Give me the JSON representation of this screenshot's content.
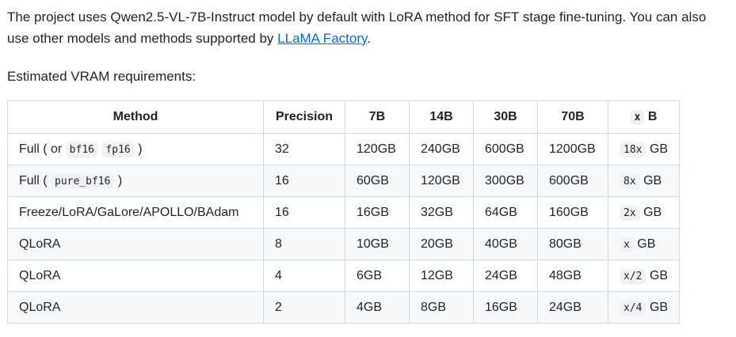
{
  "intro": {
    "text": "The project uses Qwen2.5-VL-7B-Instruct model by default with LoRA method for SFT stage fine-tuning. You can also use other models and methods supported by ",
    "link_text": "LLaMA Factory",
    "suffix": "."
  },
  "vram_label": "Estimated VRAM requirements:",
  "table": {
    "headers": {
      "method": "Method",
      "precision": "Precision",
      "h7b": "7B",
      "h14b": "14B",
      "h30b": "30B",
      "h70b": "70B",
      "hxb_code": "x",
      "hxb_suffix": "B"
    },
    "rows": [
      {
        "method_prefix": "Full ( or ",
        "method_code1": "bf16",
        "method_code2": "fp16",
        "method_suffix": " )",
        "precision": "32",
        "v7b": "120GB",
        "v14b": "240GB",
        "v30b": "600GB",
        "v70b": "1200GB",
        "xb_code": "18x",
        "xb_suffix": "GB"
      },
      {
        "method_prefix": "Full ( ",
        "method_code1": "pure_bf16",
        "method_suffix": " )",
        "precision": "16",
        "v7b": "60GB",
        "v14b": "120GB",
        "v30b": "300GB",
        "v70b": "600GB",
        "xb_code": "8x",
        "xb_suffix": "GB"
      },
      {
        "method": "Freeze/LoRA/GaLore/APOLLO/BAdam",
        "precision": "16",
        "v7b": "16GB",
        "v14b": "32GB",
        "v30b": "64GB",
        "v70b": "160GB",
        "xb_code": "2x",
        "xb_suffix": "GB"
      },
      {
        "method": "QLoRA",
        "precision": "8",
        "v7b": "10GB",
        "v14b": "20GB",
        "v30b": "40GB",
        "v70b": "80GB",
        "xb_code": "x",
        "xb_suffix": "GB"
      },
      {
        "method": "QLoRA",
        "precision": "4",
        "v7b": "6GB",
        "v14b": "12GB",
        "v30b": "24GB",
        "v70b": "48GB",
        "xb_code": "x/2",
        "xb_suffix": "GB"
      },
      {
        "method": "QLoRA",
        "precision": "2",
        "v7b": "4GB",
        "v14b": "8GB",
        "v30b": "16GB",
        "v70b": "24GB",
        "xb_code": "x/4",
        "xb_suffix": "GB"
      }
    ]
  },
  "colors": {
    "text": "#1f2328",
    "link": "#0969da",
    "border": "#d1d9e0",
    "stripe": "#f6f8fa",
    "code_bg": "#eff1f3"
  }
}
